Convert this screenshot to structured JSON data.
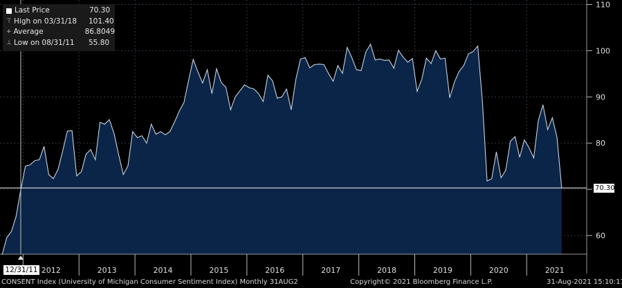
{
  "legend": {
    "last_price_label": "Last Price",
    "last_price_value": "70.30",
    "high_label": "High on 03/31/18",
    "high_value": "101.40",
    "average_label": "Average",
    "average_value": "86.8049",
    "low_label": "Low on 08/31/11",
    "low_value": "55.80"
  },
  "cursor_date": "12/31/11",
  "last_value_tag": "70.30",
  "footer": {
    "left": "CONSENT Index (University of Michigan Consumer Sentiment Index)  Monthly 31AUG2",
    "center": "Copyright© 2021 Bloomberg Finance L.P.",
    "right": "31-Aug-2021 15:10:17"
  },
  "colors": {
    "background": "#000000",
    "area_fill": "#0b2548",
    "line": "#c9d3e0",
    "grid": "#2f3a46",
    "last_price_line": "#ffffff"
  },
  "chart_data": {
    "type": "area",
    "title": "",
    "xlabel": "",
    "ylabel": "",
    "ylim": [
      55.8,
      110
    ],
    "yticks": [
      60,
      70,
      80,
      90,
      100,
      110
    ],
    "xtick_labels": [
      "2012",
      "2013",
      "2014",
      "2015",
      "2016",
      "2017",
      "2018",
      "2019",
      "2020",
      "2021"
    ],
    "x_start": "2011-08",
    "frequency": "monthly",
    "last_price": 70.3,
    "cursor": "2011-12",
    "values": [
      55.8,
      59.5,
      60.9,
      64.1,
      69.9,
      75.0,
      75.3,
      76.2,
      76.4,
      79.3,
      73.2,
      72.3,
      74.3,
      78.3,
      82.6,
      82.7,
      72.9,
      73.8,
      77.6,
      78.6,
      76.4,
      84.5,
      84.1,
      85.1,
      82.1,
      77.5,
      73.2,
      75.1,
      82.5,
      81.2,
      81.6,
      80.0,
      84.1,
      81.9,
      82.5,
      81.8,
      82.5,
      84.6,
      86.9,
      88.8,
      93.6,
      98.1,
      95.4,
      93.0,
      95.9,
      90.7,
      96.1,
      93.1,
      92.1,
      87.2,
      90.0,
      91.3,
      92.6,
      92.0,
      91.7,
      90.7,
      89.0,
      94.7,
      93.5,
      89.7,
      90.0,
      91.7,
      87.2,
      93.8,
      98.2,
      98.5,
      96.3,
      97.0,
      97.1,
      97.0,
      95.1,
      93.4,
      96.8,
      95.1,
      100.7,
      98.5,
      95.9,
      95.7,
      99.7,
      101.4,
      98.0,
      98.2,
      97.9,
      98.0,
      96.2,
      100.1,
      98.6,
      97.5,
      98.3,
      91.2,
      93.8,
      98.4,
      97.2,
      100.0,
      98.2,
      98.4,
      89.8,
      93.2,
      95.5,
      96.8,
      99.3,
      99.8,
      101.0,
      89.1,
      71.8,
      72.3,
      78.1,
      72.5,
      74.1,
      80.4,
      81.4,
      76.9,
      80.7,
      79.0,
      76.8,
      84.9,
      88.3,
      82.9,
      85.5,
      81.2,
      70.3
    ]
  }
}
